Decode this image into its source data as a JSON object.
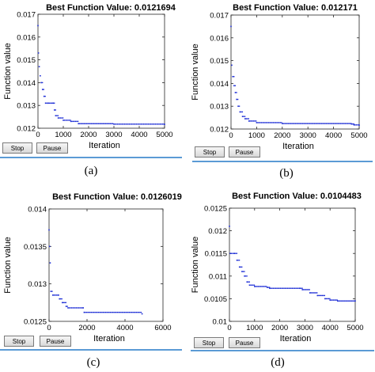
{
  "panels": [
    {
      "id": "a",
      "caption": "(a)",
      "title": "Best Function Value: 0.0121694",
      "stop_label": "Stop",
      "pause_label": "Pause",
      "chart_data": {
        "type": "scatter",
        "title": "Best Function Value: 0.0121694",
        "xlabel": "Iteration",
        "ylabel": "Function value",
        "xlim": [
          0,
          5000
        ],
        "ylim": [
          0.012,
          0.017
        ],
        "xticks": [
          0,
          1000,
          2000,
          3000,
          4000,
          5000
        ],
        "yticks": [
          0.012,
          0.013,
          0.014,
          0.015,
          0.016,
          0.017
        ],
        "xtick_labels": [
          "0",
          "1000",
          "2000",
          "3000",
          "4000",
          "5000"
        ],
        "ytick_labels": [
          "0.012",
          "0.013",
          "0.014",
          "0.015",
          "0.016",
          "0.017"
        ],
        "grid": false,
        "color": "#1f2fd6",
        "points": [
          [
            0,
            0.0165
          ],
          [
            20,
            0.0153
          ],
          [
            50,
            0.0147
          ],
          [
            90,
            0.0143
          ],
          [
            130,
            0.014
          ],
          [
            180,
            0.0137
          ],
          [
            240,
            0.0134
          ],
          [
            300,
            0.0131
          ],
          [
            400,
            0.0131
          ],
          [
            600,
            0.0131
          ],
          [
            650,
            0.0128
          ],
          [
            700,
            0.01255
          ],
          [
            800,
            0.01245
          ],
          [
            1000,
            0.01235
          ],
          [
            1300,
            0.0123
          ],
          [
            1600,
            0.0122
          ],
          [
            3000,
            0.01218
          ],
          [
            5000,
            0.01217
          ]
        ]
      }
    },
    {
      "id": "b",
      "caption": "(b)",
      "title": "Best Function Value: 0.012171",
      "stop_label": "Stop",
      "pause_label": "Pause",
      "chart_data": {
        "type": "scatter",
        "title": "Best Function Value: 0.012171",
        "xlabel": "Iteration",
        "ylabel": "Function value",
        "xlim": [
          0,
          5000
        ],
        "ylim": [
          0.012,
          0.017
        ],
        "xticks": [
          0,
          1000,
          2000,
          3000,
          4000,
          5000
        ],
        "yticks": [
          0.012,
          0.013,
          0.014,
          0.015,
          0.016,
          0.017
        ],
        "xtick_labels": [
          "0",
          "1000",
          "2000",
          "3000",
          "4000",
          "5000"
        ],
        "ytick_labels": [
          "0.012",
          "0.013",
          "0.014",
          "0.015",
          "0.016",
          "0.017"
        ],
        "grid": false,
        "color": "#1f2fd6",
        "points": [
          [
            0,
            0.0165
          ],
          [
            30,
            0.0148
          ],
          [
            70,
            0.0143
          ],
          [
            120,
            0.0139
          ],
          [
            170,
            0.0136
          ],
          [
            220,
            0.0133
          ],
          [
            280,
            0.013
          ],
          [
            350,
            0.01275
          ],
          [
            450,
            0.01255
          ],
          [
            550,
            0.01245
          ],
          [
            700,
            0.01235
          ],
          [
            1000,
            0.01228
          ],
          [
            2000,
            0.01224
          ],
          [
            4700,
            0.01222
          ],
          [
            4800,
            0.01218
          ],
          [
            5000,
            0.01217
          ]
        ]
      }
    },
    {
      "id": "c",
      "caption": "(c)",
      "title": "Best Function Value: 0.0126019",
      "stop_label": "Stop",
      "pause_label": "Pause",
      "chart_data": {
        "type": "scatter",
        "title": "Best Function Value: 0.0126019",
        "xlabel": "Iteration",
        "ylabel": "Function value",
        "xlim": [
          0,
          6000
        ],
        "ylim": [
          0.0125,
          0.014
        ],
        "xticks": [
          0,
          2000,
          4000,
          6000
        ],
        "yticks": [
          0.0125,
          0.013,
          0.0135,
          0.014
        ],
        "xtick_labels": [
          "0",
          "2000",
          "4000",
          "6000"
        ],
        "ytick_labels": [
          "0.0125",
          "0.013",
          "0.0135",
          "0.014"
        ],
        "grid": false,
        "color": "#1f2fd6",
        "points": [
          [
            0,
            0.01372
          ],
          [
            30,
            0.0135
          ],
          [
            60,
            0.01328
          ],
          [
            100,
            0.0129
          ],
          [
            200,
            0.01285
          ],
          [
            500,
            0.01285
          ],
          [
            550,
            0.0128
          ],
          [
            700,
            0.01275
          ],
          [
            900,
            0.0127
          ],
          [
            1000,
            0.01268
          ],
          [
            1800,
            0.01268
          ],
          [
            1850,
            0.01262
          ],
          [
            4900,
            0.0126
          ]
        ]
      }
    },
    {
      "id": "d",
      "caption": "(d)",
      "title": "Best Function Value: 0.0104483",
      "stop_label": "Stop",
      "pause_label": "Pause",
      "chart_data": {
        "type": "scatter",
        "title": "Best Function Value: 0.0104483",
        "xlabel": "Iteration",
        "ylabel": "Function value",
        "xlim": [
          0,
          5000
        ],
        "ylim": [
          0.01,
          0.0125
        ],
        "xticks": [
          0,
          1000,
          2000,
          3000,
          4000,
          5000
        ],
        "yticks": [
          0.01,
          0.0105,
          0.011,
          0.0115,
          0.012,
          0.0125
        ],
        "xtick_labels": [
          "0",
          "1000",
          "2000",
          "3000",
          "4000",
          "5000"
        ],
        "ytick_labels": [
          "0.01",
          "0.0105",
          "0.011",
          "0.0115",
          "0.012",
          "0.0125"
        ],
        "grid": false,
        "color": "#1f2fd6",
        "points": [
          [
            0,
            0.0121
          ],
          [
            30,
            0.0115
          ],
          [
            200,
            0.0115
          ],
          [
            300,
            0.01135
          ],
          [
            400,
            0.0112
          ],
          [
            500,
            0.0111
          ],
          [
            600,
            0.011
          ],
          [
            700,
            0.01087
          ],
          [
            800,
            0.0108
          ],
          [
            1000,
            0.01077
          ],
          [
            1500,
            0.01075
          ],
          [
            1600,
            0.01073
          ],
          [
            2800,
            0.01073
          ],
          [
            2900,
            0.0107
          ],
          [
            3200,
            0.01063
          ],
          [
            3500,
            0.01057
          ],
          [
            3800,
            0.0105
          ],
          [
            4000,
            0.01047
          ],
          [
            4300,
            0.01045
          ],
          [
            5000,
            0.01045
          ]
        ]
      }
    }
  ]
}
